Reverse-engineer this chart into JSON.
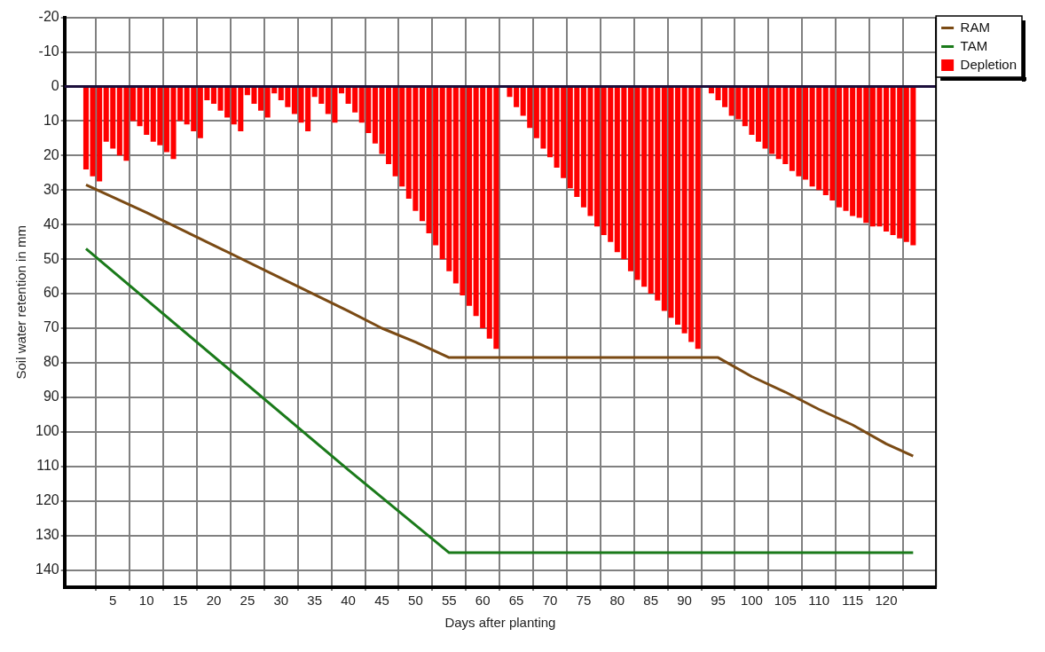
{
  "chart_data": {
    "type": "bar",
    "xlabel": "Days after planting",
    "ylabel": "Soil water retention in mm",
    "x": [
      1,
      2,
      3,
      4,
      5,
      6,
      7,
      8,
      9,
      10,
      11,
      12,
      13,
      14,
      15,
      16,
      17,
      18,
      19,
      20,
      21,
      22,
      23,
      24,
      25,
      26,
      27,
      28,
      29,
      30,
      31,
      32,
      33,
      34,
      35,
      36,
      37,
      38,
      39,
      40,
      41,
      42,
      43,
      44,
      45,
      46,
      47,
      48,
      49,
      50,
      51,
      52,
      53,
      54,
      55,
      56,
      57,
      58,
      59,
      60,
      61,
      62,
      63,
      64,
      65,
      66,
      67,
      68,
      69,
      70,
      71,
      72,
      73,
      74,
      75,
      76,
      77,
      78,
      79,
      80,
      81,
      82,
      83,
      84,
      85,
      86,
      87,
      88,
      89,
      90,
      91,
      92,
      93,
      94,
      95,
      96,
      97,
      98,
      99,
      100,
      101,
      102,
      103,
      104,
      105,
      106,
      107,
      108,
      109,
      110,
      111,
      112,
      113,
      114,
      115,
      116,
      117,
      118,
      119,
      120,
      121,
      122,
      123,
      124
    ],
    "series": [
      {
        "name": "RAM",
        "type": "line",
        "color": "#7a4a14",
        "x": [
          1,
          10,
          20,
          30,
          40,
          45,
          50,
          55,
          95,
          100,
          105,
          110,
          115,
          120,
          124
        ],
        "values": [
          28.5,
          36.5,
          46,
          55.5,
          65,
          70,
          74,
          78.5,
          78.5,
          84,
          88.5,
          93.5,
          98,
          103.5,
          107
        ]
      },
      {
        "name": "TAM",
        "type": "line",
        "color": "#1a7a1a",
        "x": [
          1,
          40,
          55,
          124
        ],
        "values": [
          47,
          111,
          135,
          135
        ]
      },
      {
        "name": "Depletion",
        "color": "#ff0000",
        "values": [
          24,
          26,
          27.5,
          16,
          18,
          20,
          21.5,
          10,
          11.5,
          14,
          16,
          17,
          19,
          21,
          10,
          11,
          13,
          15,
          4,
          5,
          7,
          9,
          11,
          13,
          2.5,
          5,
          7,
          9,
          2,
          4,
          6,
          8,
          10.5,
          13,
          3,
          5,
          8,
          10.5,
          2,
          5,
          7.5,
          10.5,
          13.5,
          16.5,
          19.5,
          22.5,
          26,
          29,
          32.5,
          36,
          39,
          42.5,
          46,
          50,
          53.5,
          57,
          60.5,
          63.5,
          66.5,
          70,
          73,
          76,
          0,
          3,
          6,
          8.5,
          12,
          15,
          18,
          20.5,
          23.5,
          26.5,
          29.5,
          32,
          35,
          37.5,
          40.5,
          43,
          45,
          48,
          50,
          53.5,
          56,
          58,
          60,
          62,
          65,
          67,
          69,
          71.5,
          74,
          76,
          0,
          2,
          4,
          6,
          8.5,
          9.5,
          11.5,
          14,
          16,
          18,
          19.5,
          21,
          22.5,
          24.5,
          26,
          27,
          29,
          30,
          31.5,
          33,
          35,
          36,
          37.5,
          38,
          39.5,
          40.5,
          40.5,
          42,
          43,
          44,
          45,
          46
        ]
      }
    ],
    "xlim": [
      0.5,
      124.7
    ],
    "xticks": [
      5,
      10,
      15,
      20,
      25,
      30,
      35,
      40,
      45,
      50,
      55,
      60,
      65,
      70,
      75,
      80,
      85,
      90,
      95,
      100,
      105,
      110,
      115,
      120
    ],
    "ylim": [
      145,
      -20
    ],
    "yticks": [
      -20,
      -10,
      0,
      10,
      20,
      30,
      40,
      50,
      60,
      70,
      80,
      90,
      100,
      110,
      120,
      130,
      140
    ],
    "grid": true,
    "legend": "top right",
    "marker": "none",
    "ref_lines": [
      {
        "axis": "y",
        "value": 0,
        "color": "#1c0f3c"
      }
    ]
  }
}
